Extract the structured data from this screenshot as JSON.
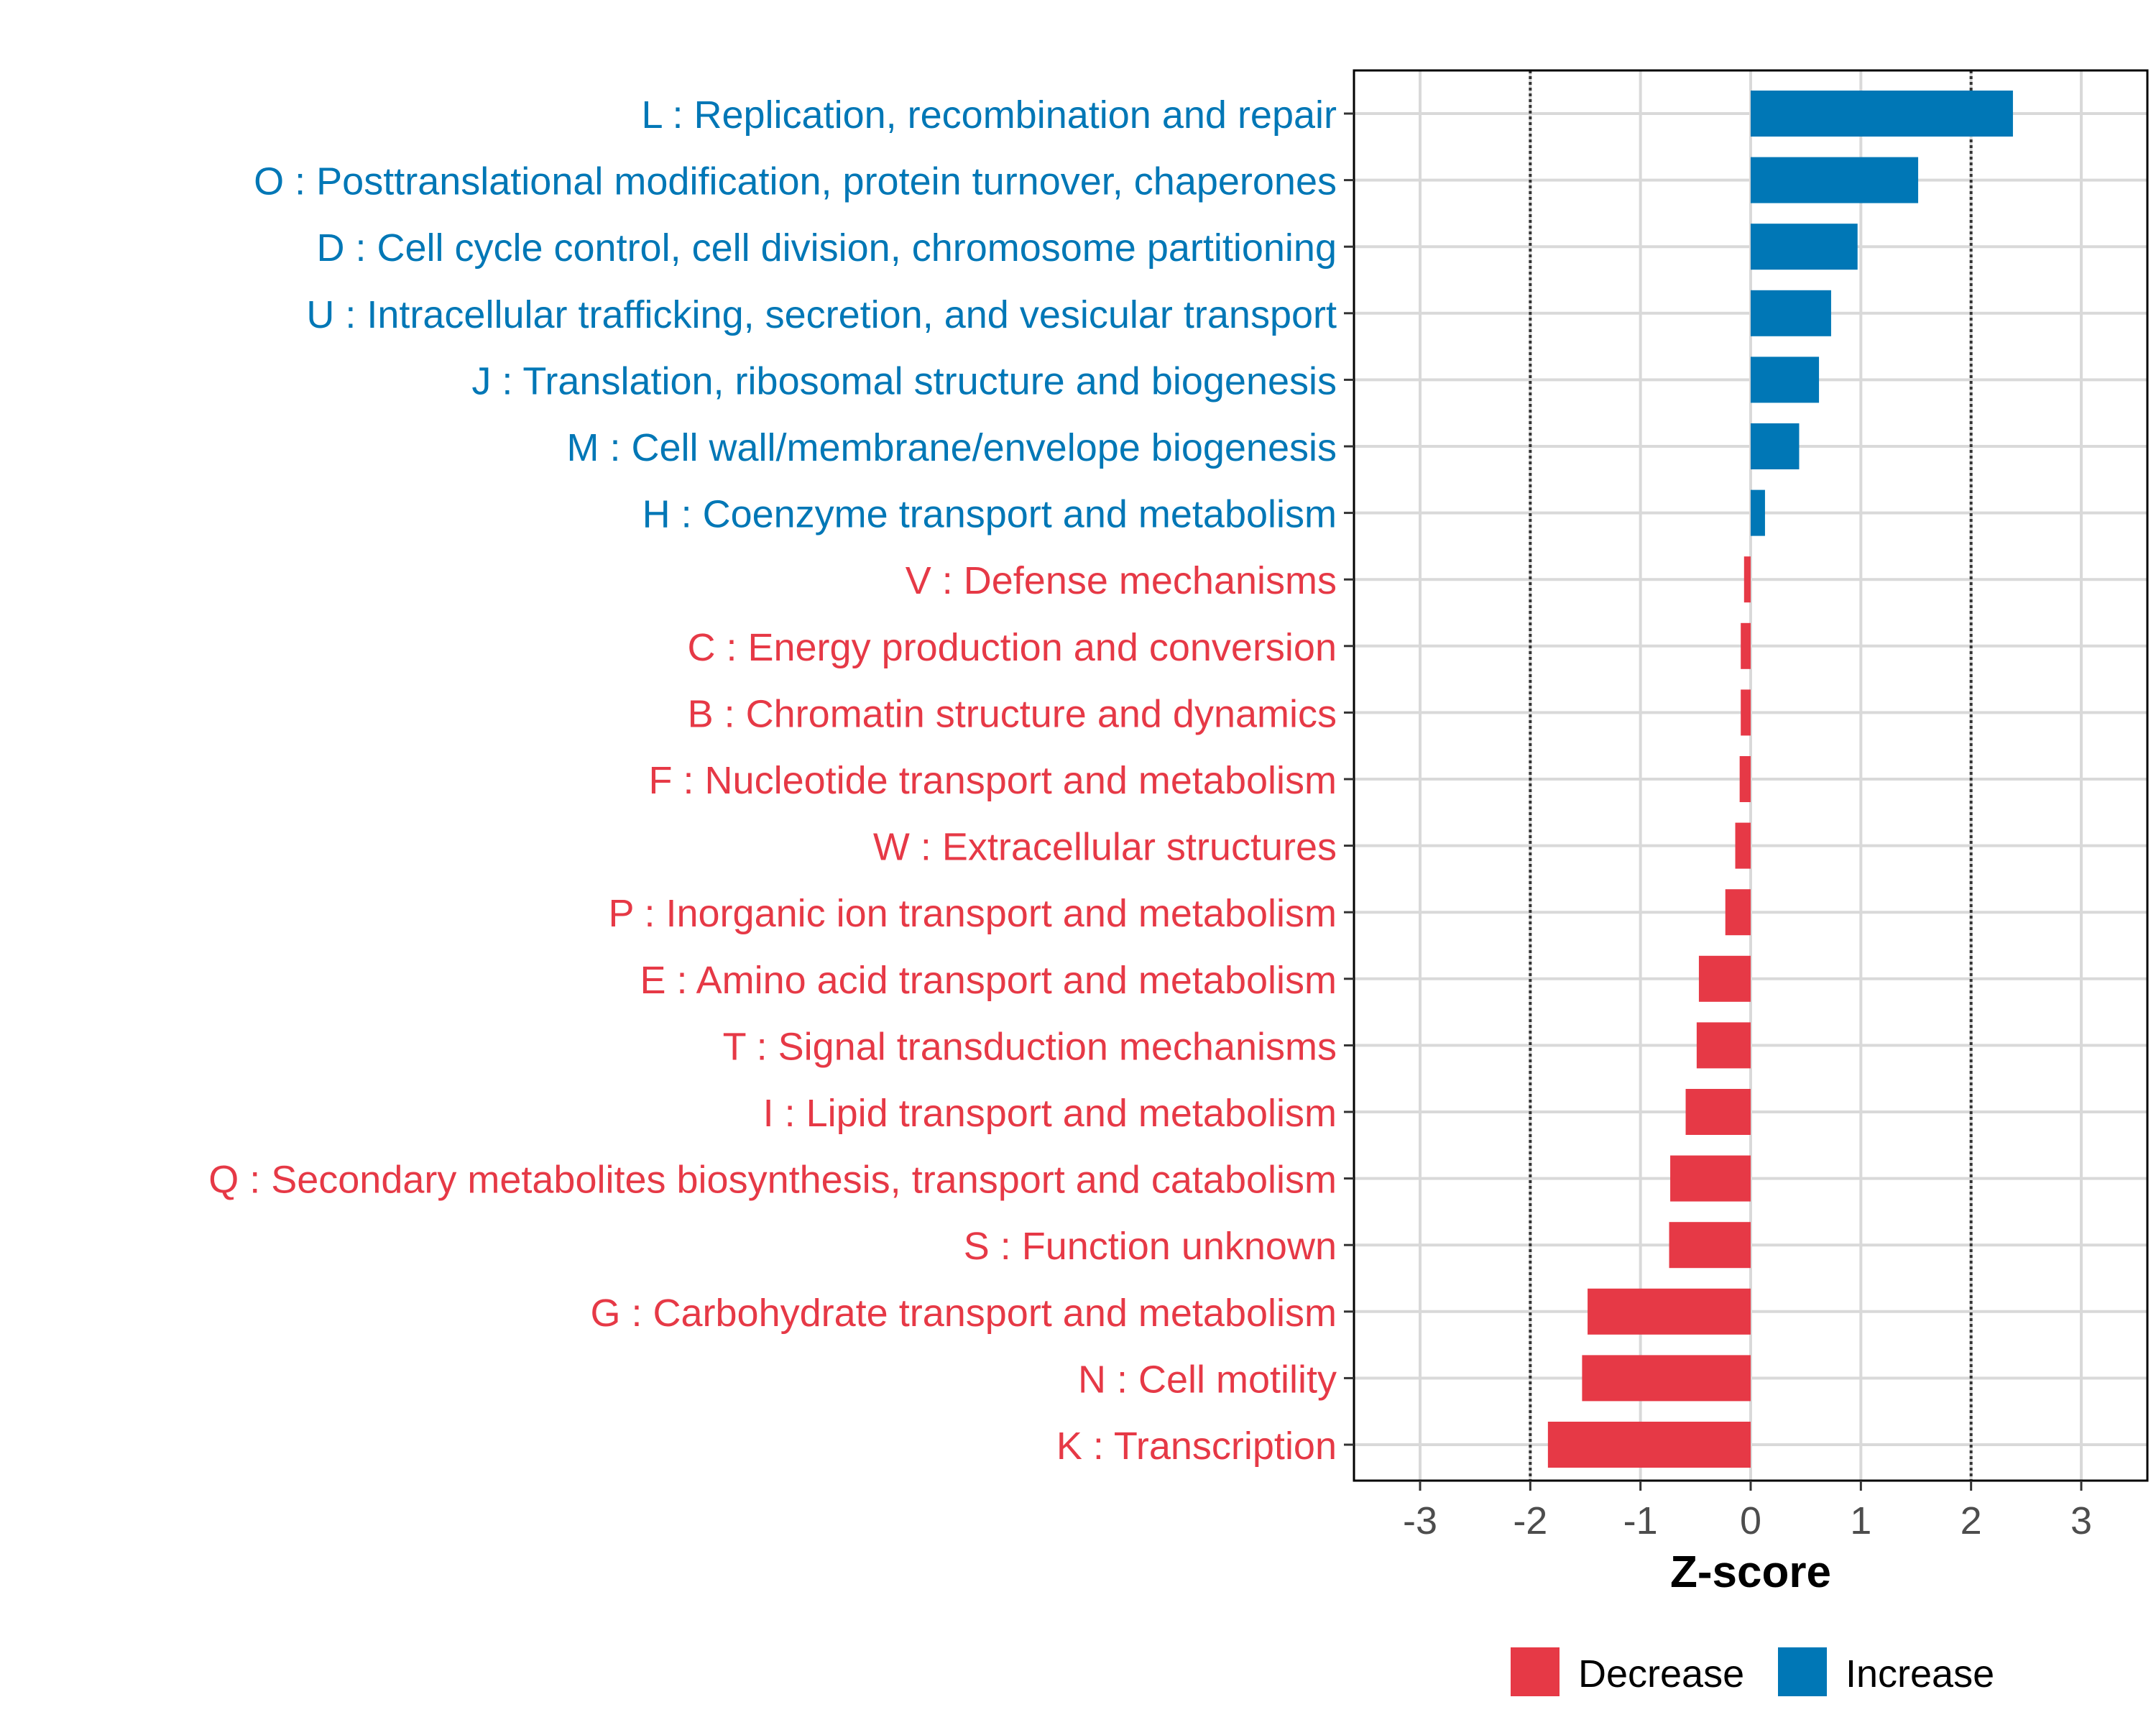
{
  "chart_data": {
    "type": "bar",
    "orientation": "horizontal",
    "title": "",
    "xlabel": "Z-score",
    "ylabel": "",
    "xlim": [
      -3.6,
      3.6
    ],
    "x_ticks": [
      -3,
      -2,
      -1,
      0,
      1,
      2,
      3
    ],
    "x_tick_labels": [
      "-3",
      "-2",
      "-1",
      "0",
      "1",
      "2",
      "3"
    ],
    "reference_lines": [
      -2,
      2
    ],
    "grid": true,
    "legend_position": "bottom",
    "colors": {
      "Decrease": "#e63946",
      "Increase": "#0077b6"
    },
    "categories": [
      "L : Replication, recombination and repair",
      "O : Posttranslational modification, protein turnover, chaperones",
      "D : Cell cycle control, cell division, chromosome partitioning",
      "U : Intracellular trafficking, secretion, and vesicular transport",
      "J : Translation, ribosomal structure and biogenesis",
      "M : Cell wall/membrane/envelope biogenesis",
      "H : Coenzyme transport and metabolism",
      "V : Defense mechanisms",
      "C : Energy production and conversion",
      "B : Chromatin structure and dynamics",
      "F : Nucleotide transport and metabolism",
      "W : Extracellular structures",
      "P : Inorganic ion transport and metabolism",
      "E : Amino acid transport and metabolism",
      "T : Signal transduction mechanisms",
      "I : Lipid transport and metabolism",
      "Q : Secondary metabolites biosynthesis, transport and catabolism",
      "S : Function unknown",
      "G : Carbohydrate transport and metabolism",
      "N : Cell motility",
      "K : Transcription"
    ],
    "values": [
      2.38,
      1.52,
      0.97,
      0.73,
      0.62,
      0.44,
      0.13,
      -0.06,
      -0.09,
      -0.09,
      -0.1,
      -0.14,
      -0.23,
      -0.47,
      -0.49,
      -0.59,
      -0.73,
      -0.74,
      -1.48,
      -1.53,
      -1.84
    ],
    "series_by_bar": [
      "Increase",
      "Increase",
      "Increase",
      "Increase",
      "Increase",
      "Increase",
      "Increase",
      "Decrease",
      "Decrease",
      "Decrease",
      "Decrease",
      "Decrease",
      "Decrease",
      "Decrease",
      "Decrease",
      "Decrease",
      "Decrease",
      "Decrease",
      "Decrease",
      "Decrease",
      "Decrease"
    ],
    "legend": [
      {
        "name": "Decrease"
      },
      {
        "name": "Increase"
      }
    ]
  }
}
